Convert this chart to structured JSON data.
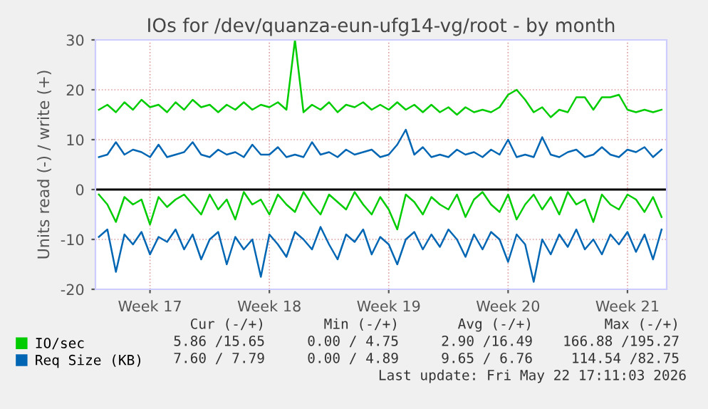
{
  "chart_data": {
    "type": "line",
    "title": "IOs for /dev/quanza-eun-ufg14-vg/root - by month",
    "ylabel": "Units read (-) / write (+)",
    "categories": [
      null,
      null,
      null,
      null,
      null,
      null,
      "Week 17",
      null,
      null,
      null,
      null,
      null,
      null,
      null,
      null,
      null,
      null,
      null,
      null,
      null,
      "Week 18",
      null,
      null,
      null,
      null,
      null,
      null,
      null,
      null,
      null,
      null,
      null,
      null,
      null,
      "Week 19",
      null,
      null,
      null,
      null,
      null,
      null,
      null,
      null,
      null,
      null,
      null,
      null,
      null,
      "Week 20",
      null,
      null,
      null,
      null,
      null,
      null,
      null,
      null,
      null,
      null,
      null,
      null,
      null,
      "Week 21",
      null,
      null,
      null,
      null
    ],
    "series": [
      {
        "name": "IO/sec",
        "color": "#00cc00",
        "values": [
          16,
          17,
          15.5,
          17.5,
          16,
          18,
          16.5,
          17,
          15.5,
          17.5,
          16,
          18,
          16.5,
          17,
          15.5,
          17,
          16,
          17.5,
          16,
          17,
          16.5,
          17.5,
          16,
          30,
          15.5,
          17,
          16,
          17.5,
          15.5,
          17,
          16.5,
          17.5,
          16,
          17,
          16,
          17.5,
          16,
          17,
          15.5,
          17,
          15.5,
          16.5,
          15,
          16.5,
          15.5,
          16,
          15.5,
          16.5,
          19,
          20,
          18,
          15.5,
          16.5,
          14.5,
          16,
          15.5,
          18.5,
          18.5,
          16,
          18.5,
          18.5,
          19,
          16,
          15.5,
          16,
          15.5,
          16
        ]
      },
      {
        "color": "#00cc00",
        "values": [
          -1,
          -3,
          -6.5,
          -1.5,
          -3,
          -2,
          -7,
          -1.5,
          -3.5,
          -2,
          -1,
          -3,
          -5,
          -1,
          -4,
          -2,
          -6,
          -0.5,
          -3,
          -2,
          -5,
          -1,
          -3,
          -4.5,
          -0.5,
          -3,
          -5,
          -1,
          -2.5,
          -4,
          -0.5,
          -3,
          -5,
          -1.5,
          -4,
          -8,
          -1,
          -2.5,
          -5,
          -1.5,
          -3,
          -4,
          -1,
          -5.5,
          -2,
          -0.5,
          -3,
          -4.5,
          -1,
          -6,
          -3,
          -1,
          -4,
          -1.5,
          -5,
          -0.5,
          -3,
          -2,
          -6.5,
          -1,
          -3,
          -4,
          -1,
          -2,
          -4.5,
          -1.5,
          -5.5
        ]
      },
      {
        "name": "Req Size (KB)",
        "color": "#0066b3",
        "values": [
          6.5,
          7,
          9.5,
          7,
          8,
          7.5,
          6.5,
          9,
          6.5,
          7,
          7.5,
          9.5,
          7,
          6.5,
          8,
          7,
          7.5,
          6.5,
          9,
          7,
          7,
          8.5,
          6.5,
          7,
          6.5,
          9.5,
          7,
          7.5,
          6.5,
          8,
          7,
          7.5,
          8,
          6.5,
          7,
          9,
          12,
          7,
          8.5,
          6.5,
          7,
          6.5,
          8,
          7,
          7.5,
          6.5,
          8,
          7,
          10,
          6.5,
          7,
          6.5,
          10.5,
          7,
          6.5,
          7.5,
          8,
          6.5,
          7,
          8.5,
          7,
          6.5,
          8,
          7.5,
          8.5,
          6.5,
          8
        ]
      },
      {
        "color": "#0066b3",
        "values": [
          -9.5,
          -8,
          -16.5,
          -9,
          -11,
          -8.5,
          -13,
          -9.5,
          -10.5,
          -8,
          -12,
          -9,
          -14,
          -10,
          -8.5,
          -15,
          -9.5,
          -12,
          -10,
          -17.5,
          -9,
          -11,
          -13.5,
          -8.5,
          -10,
          -12,
          -7.5,
          -11,
          -14,
          -9,
          -10.5,
          -8,
          -13,
          -9.5,
          -11,
          -15,
          -10,
          -8.5,
          -12,
          -9,
          -11.5,
          -8,
          -10,
          -13.5,
          -9,
          -12,
          -8.5,
          -10,
          -14.5,
          -9,
          -11,
          -18.5,
          -10,
          -13,
          -9,
          -11.5,
          -8,
          -12,
          -10,
          -13,
          -9,
          -11,
          -8.5,
          -12.5,
          -9,
          -14,
          -8
        ]
      }
    ],
    "ylim": [
      -20,
      30
    ],
    "yticks": [
      -20,
      -10,
      0,
      10,
      20,
      30
    ],
    "ref_lines": [
      {
        "axis": "y",
        "value": 0,
        "color": "#000000"
      }
    ],
    "grid": true,
    "legend": "bottom",
    "annotations": [
      "Cur (-/+)",
      "Min (-/+)",
      "Avg (-/+)",
      "Max (-/+)",
      "5.86 /15.65",
      "0.00 / 4.75",
      "2.90 /16.49",
      "166.88 /195.27",
      "7.60 / 7.79",
      "0.00 / 4.89",
      "9.65 / 6.76",
      "114.54 /82.75",
      "Last update: Fri May 22 17:11:03 2026"
    ]
  }
}
